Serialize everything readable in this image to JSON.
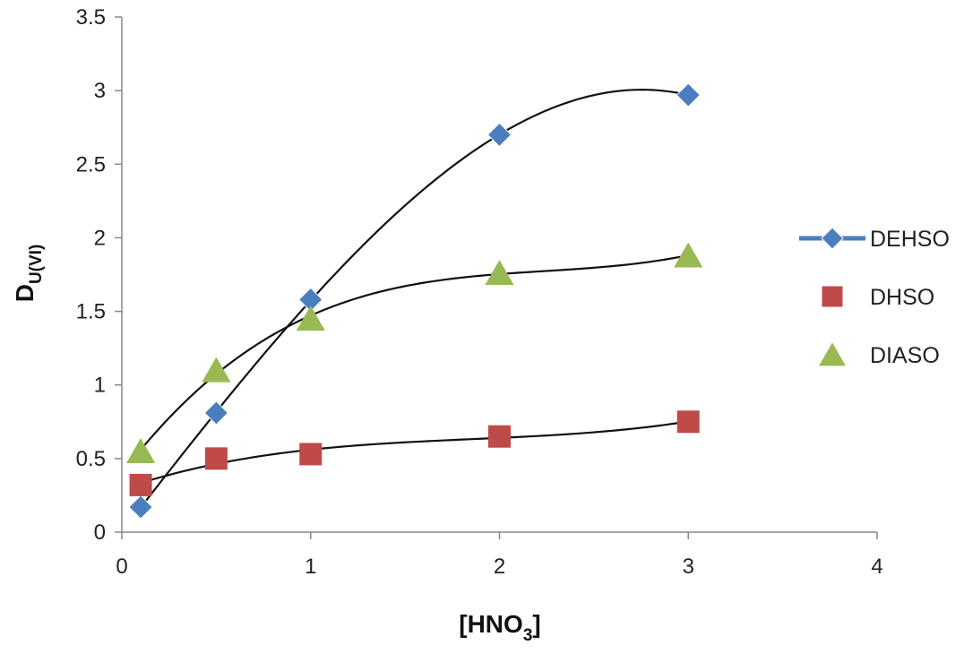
{
  "chart_data": {
    "type": "scatter",
    "xlabel": "[HNO",
    "xlabel_sub": "3",
    "xlabel_end": "]",
    "ylabel": "D",
    "ylabel_sub": "U(VI)",
    "xlim": [
      0,
      4
    ],
    "ylim": [
      0,
      3.5
    ],
    "xticks": [
      0,
      1,
      2,
      3,
      4
    ],
    "yticks": [
      0,
      0.5,
      1,
      1.5,
      2,
      2.5,
      3,
      3.5
    ],
    "xtick_labels": [
      "0",
      "1",
      "2",
      "3",
      "4"
    ],
    "ytick_labels": [
      "0",
      "0.5",
      "1",
      "1.5",
      "2",
      "2.5",
      "3",
      "3.5"
    ],
    "grid": false,
    "legend_position": "right",
    "trendline": "polynomial",
    "series": [
      {
        "name": "DEHSO",
        "marker": "diamond",
        "color": "#4a7ebf",
        "x": [
          0.1,
          0.5,
          1,
          2,
          3
        ],
        "y": [
          0.17,
          0.81,
          1.58,
          2.7,
          2.97
        ]
      },
      {
        "name": "DHSO",
        "marker": "square",
        "color": "#be4b48",
        "x": [
          0.1,
          0.5,
          1,
          2,
          3
        ],
        "y": [
          0.32,
          0.5,
          0.53,
          0.65,
          0.75
        ]
      },
      {
        "name": "DIASO",
        "marker": "triangle",
        "color": "#98b954",
        "x": [
          0.1,
          0.5,
          1,
          2,
          3
        ],
        "y": [
          0.55,
          1.1,
          1.45,
          1.76,
          1.88
        ]
      }
    ]
  }
}
